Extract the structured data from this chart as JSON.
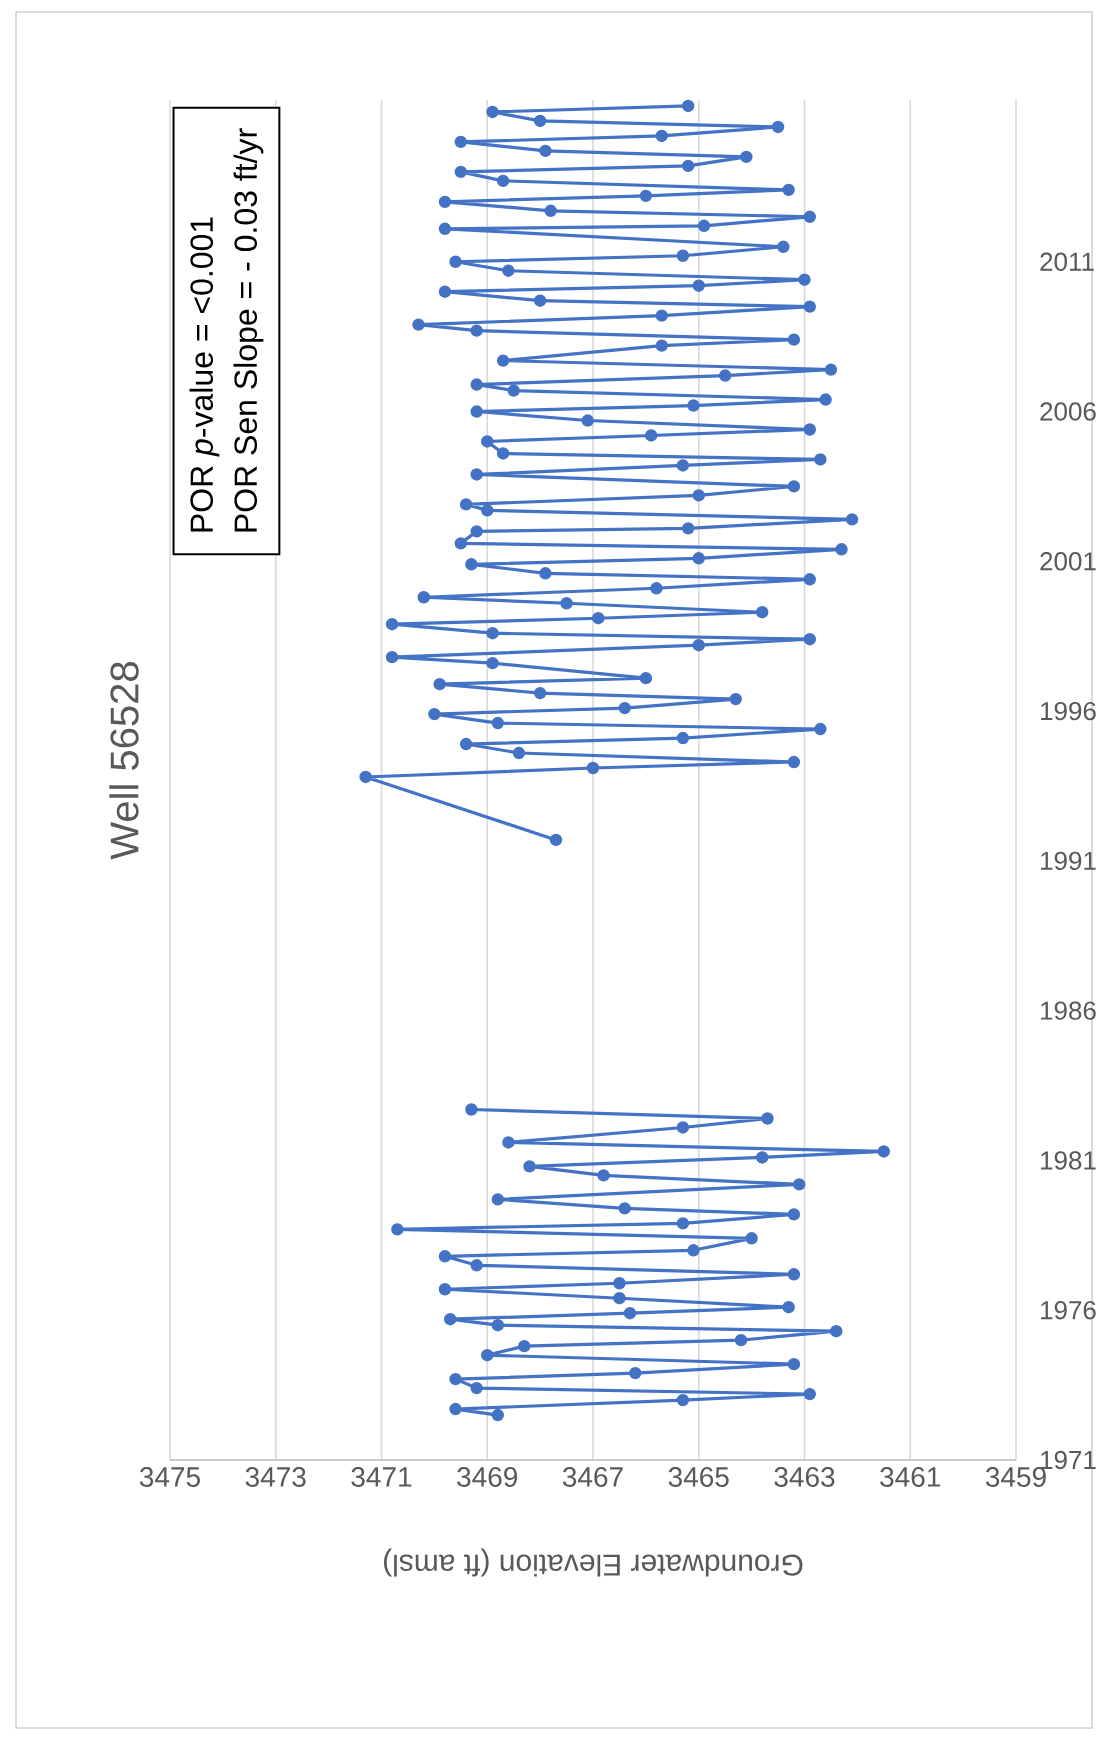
{
  "chart_data": {
    "type": "line",
    "title": "Well 56528",
    "xlabel": "Groundwater Elevation (ft amsl)",
    "annotations": [
      "POR *p*-value = <0.001",
      "POR Sen Slope = - 0.03 ft/yr"
    ],
    "x": [
      3468.8,
      3469.6,
      3465.3,
      3462.9,
      3469.2,
      3469.6,
      3466.2,
      3463.2,
      3469.0,
      3468.3,
      3464.2,
      3462.4,
      3468.8,
      3469.7,
      3466.3,
      3463.3,
      3466.5,
      3469.8,
      3466.5,
      3463.2,
      3469.2,
      3469.8,
      3465.1,
      3464.0,
      3470.7,
      3465.3,
      3463.2,
      3466.4,
      3468.8,
      3463.1,
      3466.8,
      3468.2,
      3463.8,
      3461.5,
      3468.6,
      3465.3,
      3463.7,
      3469.3,
      null,
      3467.7,
      3471.3,
      3467.0,
      3463.2,
      3468.4,
      3469.4,
      3465.3,
      3462.7,
      3468.8,
      3470.0,
      3466.4,
      3464.3,
      3468.0,
      3469.9,
      3466.0,
      3468.9,
      3470.8,
      3465.0,
      3462.9,
      3468.9,
      3470.8,
      3466.9,
      3463.8,
      3467.5,
      3470.2,
      3465.8,
      3462.9,
      3467.9,
      3469.3,
      3465.0,
      3462.3,
      3469.5,
      3469.2,
      3465.2,
      3462.1,
      3469.0,
      3469.4,
      3465.0,
      3463.2,
      3469.2,
      3465.3,
      3462.7,
      3468.7,
      3469.0,
      3465.9,
      3462.9,
      3467.1,
      3469.2,
      3465.1,
      3462.6,
      3468.5,
      3469.2,
      3464.5,
      3462.5,
      3468.7,
      3465.7,
      3463.2,
      3469.2,
      3470.3,
      3465.7,
      3462.9,
      3468.0,
      3469.8,
      3465.0,
      3463.0,
      3468.6,
      3469.6,
      3465.3,
      3463.4,
      3469.8,
      3464.9,
      3462.9,
      3467.8,
      3469.8,
      3466.0,
      3463.3,
      3468.7,
      3469.5,
      3465.2,
      3464.1,
      3467.9,
      3469.5,
      3465.7,
      3463.5,
      3468.0,
      3468.9,
      3465.2
    ],
    "series": [
      {
        "color": "#4472c4",
        "values": [
          1972.5,
          1972.7,
          1973.0,
          1973.2,
          1973.4,
          1973.7,
          1973.9,
          1974.2,
          1974.5,
          1974.8,
          1975.0,
          1975.3,
          1975.5,
          1975.7,
          1975.9,
          1976.1,
          1976.4,
          1976.7,
          1976.9,
          1977.2,
          1977.5,
          1977.8,
          1978.0,
          1978.4,
          1978.7,
          1978.9,
          1979.2,
          1979.4,
          1979.7,
          1980.2,
          1980.5,
          1980.8,
          1981.1,
          1981.3,
          1981.6,
          1982.1,
          1982.4,
          1982.7,
          null,
          1991.7,
          1993.8,
          1994.1,
          1994.3,
          1994.6,
          1994.9,
          1995.1,
          1995.4,
          1995.6,
          1995.9,
          1996.1,
          1996.4,
          1996.6,
          1996.9,
          1997.1,
          1997.6,
          1997.8,
          1998.2,
          1998.4,
          1998.6,
          1998.9,
          1999.1,
          1999.3,
          1999.6,
          1999.8,
          2000.1,
          2000.4,
          2000.6,
          2000.9,
          2001.1,
          2001.4,
          2001.6,
          2002.0,
          2002.1,
          2002.4,
          2002.7,
          2002.9,
          2003.2,
          2003.5,
          2003.9,
          2004.2,
          2004.4,
          2004.6,
          2005.0,
          2005.2,
          2005.4,
          2005.7,
          2006.0,
          2006.2,
          2006.4,
          2006.7,
          2006.9,
          2007.2,
          2007.4,
          2007.7,
          2008.2,
          2008.4,
          2008.7,
          2008.9,
          2009.2,
          2009.5,
          2009.7,
          2010.0,
          2010.2,
          2010.4,
          2010.7,
          2011.0,
          2011.2,
          2011.5,
          2012.1,
          2012.2,
          2012.5,
          2012.7,
          2013.0,
          2013.2,
          2013.4,
          2013.7,
          2014.0,
          2014.2,
          2014.5,
          2014.7,
          2015.0,
          2015.2,
          2015.5,
          2015.7,
          2016.0,
          2016.2
        ]
      }
    ],
    "xlim": [
      3475,
      3459
    ],
    "xticks": [
      3475,
      3473,
      3471,
      3469,
      3467,
      3465,
      3463,
      3461,
      3459
    ],
    "ylim": [
      1971,
      2016.4
    ],
    "yticks": [
      1971,
      1976,
      1981,
      1986,
      1991,
      1996,
      2001,
      2006,
      2011
    ],
    "grid": "x",
    "marker": "circle",
    "line_style": "solid"
  }
}
